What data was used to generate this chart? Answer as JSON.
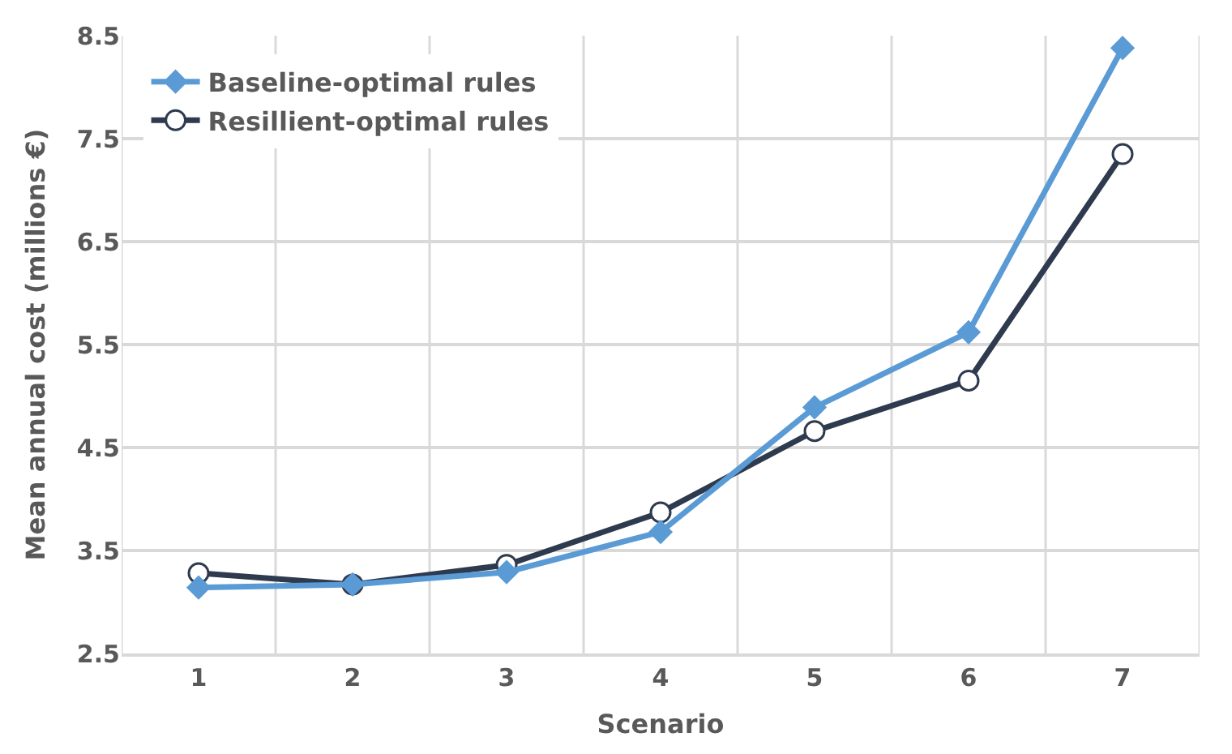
{
  "chart_data": {
    "type": "line",
    "xlabel": "Scenario",
    "ylabel": "Mean annual cost (millions €)",
    "categories": [
      "1",
      "2",
      "3",
      "4",
      "5",
      "6",
      "7"
    ],
    "series": [
      {
        "name": "Baseline-optimal rules",
        "color": "#5b9bd5",
        "marker": "diamond",
        "values": [
          3.14,
          3.17,
          3.29,
          3.68,
          4.89,
          5.62,
          8.38
        ]
      },
      {
        "name": "Resillient-optimal rules",
        "color": "#2e3a4e",
        "marker": "circle",
        "values": [
          3.28,
          3.17,
          3.36,
          3.87,
          4.66,
          5.15,
          7.35
        ]
      }
    ],
    "ylim": [
      2.5,
      8.5
    ],
    "yticks": [
      {
        "value": 2.5,
        "label": "2.5"
      },
      {
        "value": 3.5,
        "label": "3.5"
      },
      {
        "value": 4.5,
        "label": "4.5"
      },
      {
        "value": 5.5,
        "label": "5.5"
      },
      {
        "value": 6.5,
        "label": "6.5"
      },
      {
        "value": 7.5,
        "label": "7.5"
      },
      {
        "value": 8.5,
        "label": "8.5"
      }
    ],
    "grid": true,
    "legend": "top left",
    "line_style": "solid"
  }
}
